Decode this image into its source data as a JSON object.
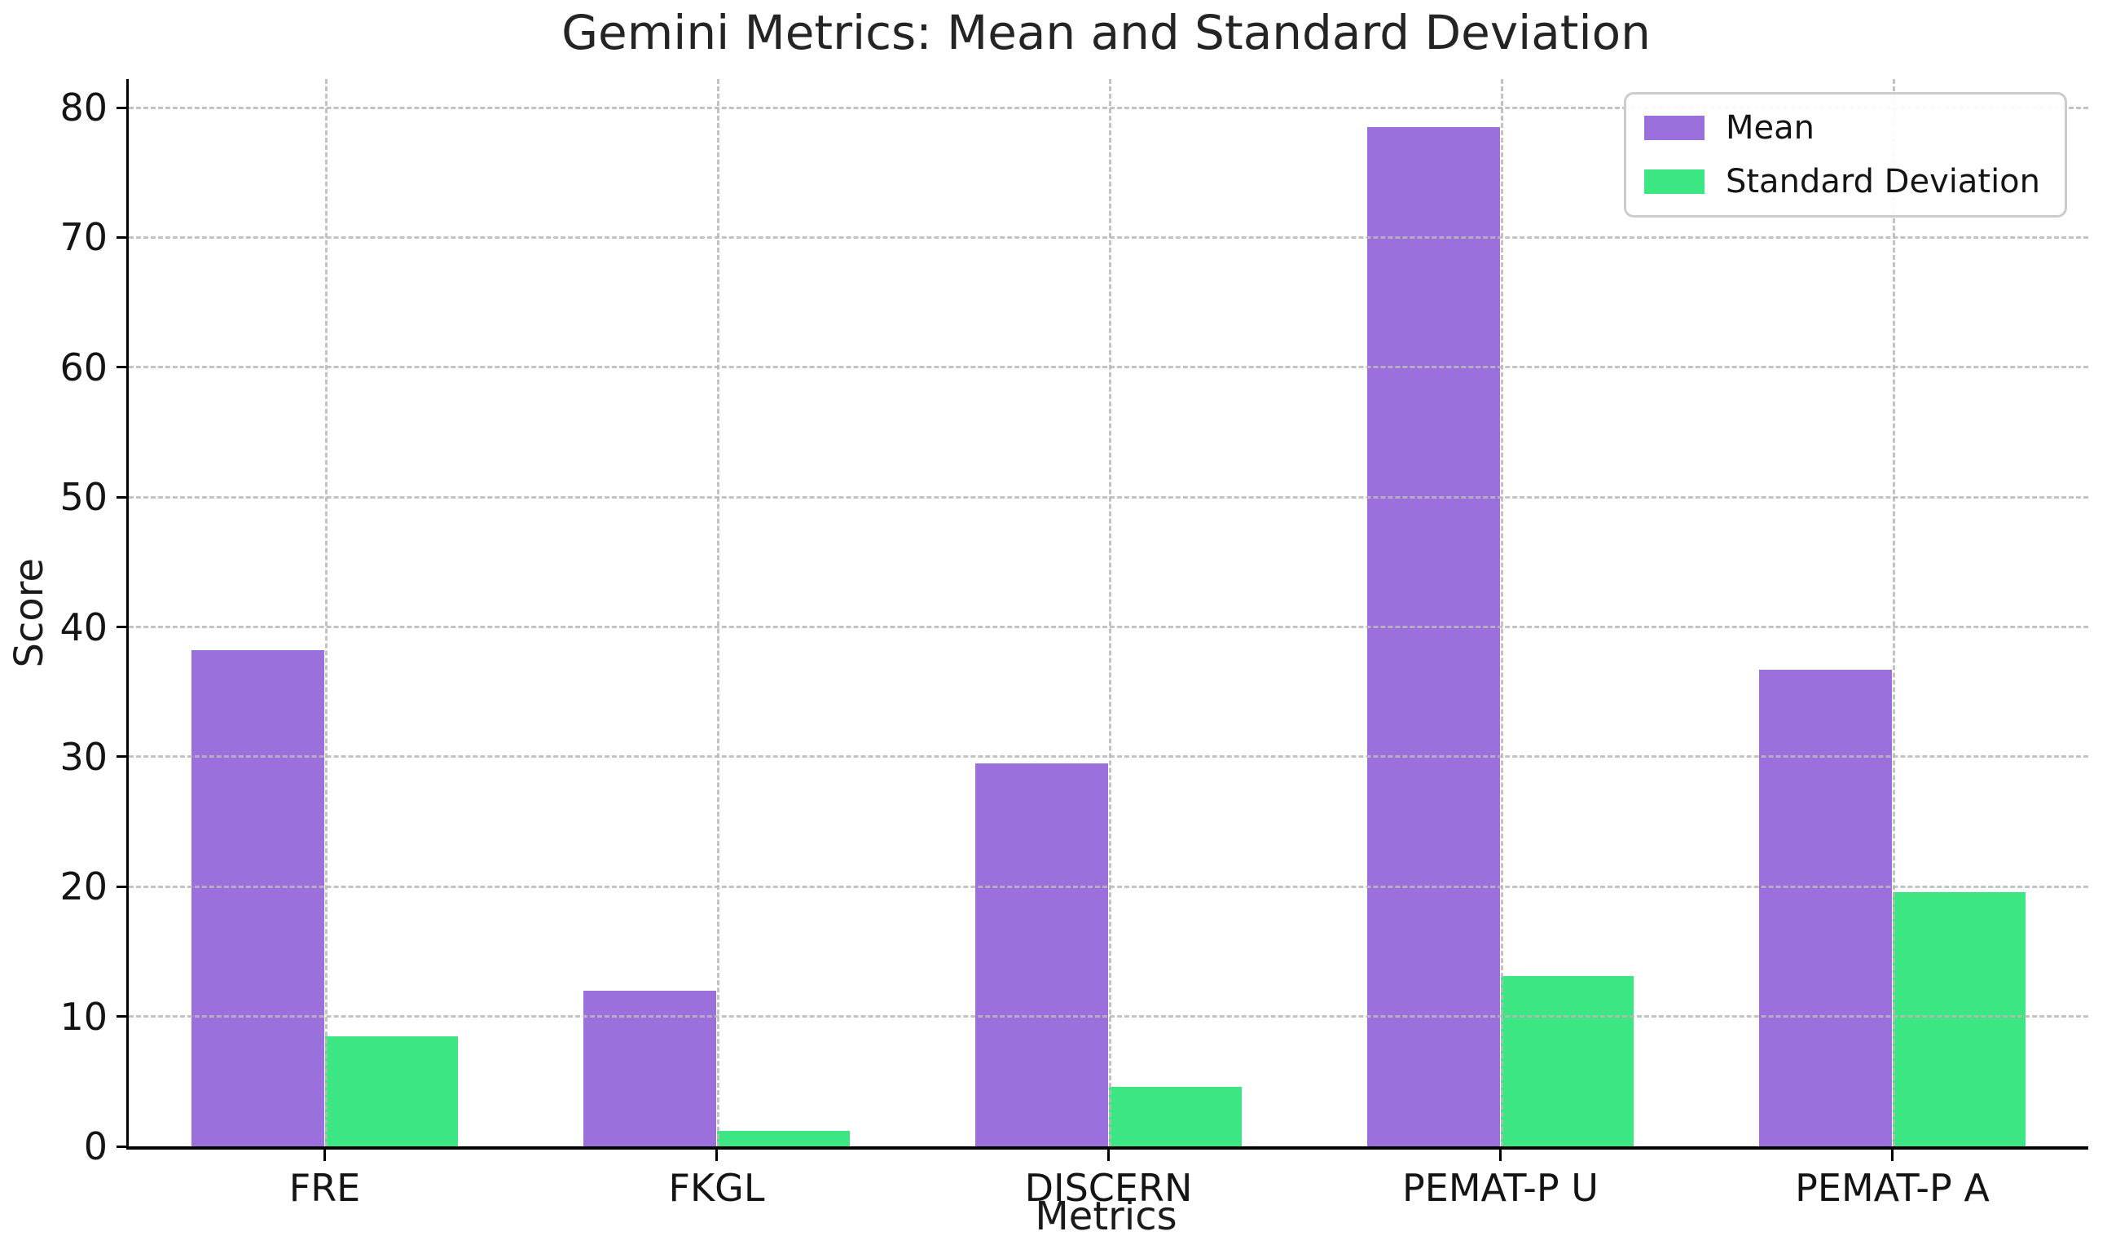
{
  "chart_data": {
    "type": "bar",
    "title": "Gemini Metrics: Mean and Standard Deviation",
    "xlabel": "Metrics",
    "ylabel": "Score",
    "categories": [
      "FRE",
      "FKGL",
      "DISCERN",
      "PEMAT-P U",
      "PEMAT-P A"
    ],
    "series": [
      {
        "name": "Mean",
        "color": "#9C70DC",
        "values": [
          38.2,
          12.0,
          29.5,
          78.5,
          36.7
        ]
      },
      {
        "name": "Standard Deviation",
        "color": "#3CE683",
        "values": [
          8.5,
          1.2,
          4.6,
          13.1,
          19.6
        ]
      }
    ],
    "ylim": [
      0,
      82.2
    ],
    "yticks": [
      0,
      10,
      20,
      30,
      40,
      50,
      60,
      70,
      80
    ],
    "grid": "dashed horizontal lines at yticks and dashed vertical lines at category centers, drawn above bars",
    "legend_position": "upper right"
  },
  "colors": {
    "background": "#ffffff",
    "spine": "#000000",
    "gridline": "#b9b9b9",
    "text": "#141414",
    "legend_border": "#cccccc",
    "mean_bar": "#9C70DC",
    "std_bar": "#3CE683"
  }
}
